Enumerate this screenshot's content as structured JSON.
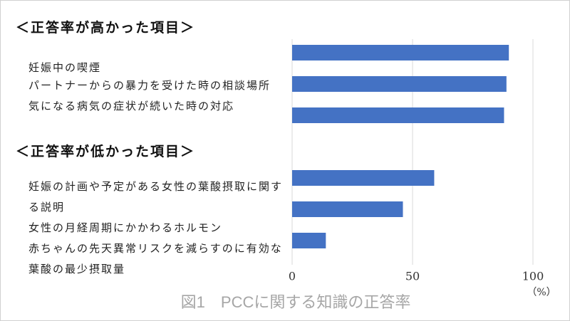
{
  "chart_data": {
    "type": "barh",
    "title": "図1　PCCに関する知識の正答率",
    "annotations": [
      "＜正答率が高かった項目＞",
      "＜正答率が低かった項目＞"
    ],
    "categories": [
      "妊娠中の喫煙",
      "パートナーからの暴力を受けた時の相談場所",
      "気になる病気の症状が続いた時の対応",
      "妊娠の計画や予定がある女性の葉酸摂取に関する説明",
      "女性の月経周期にかかわるホルモン",
      "赤ちゃんの先天異常リスクを減らすのに有効な葉酸の最少摂取量"
    ],
    "values": [
      90,
      89,
      88,
      59,
      46,
      14
    ],
    "color": "#4472c4",
    "xlabel": "（%）",
    "xlim": [
      0,
      100
    ],
    "xticks": [
      0,
      50,
      100
    ],
    "grid": true
  }
}
